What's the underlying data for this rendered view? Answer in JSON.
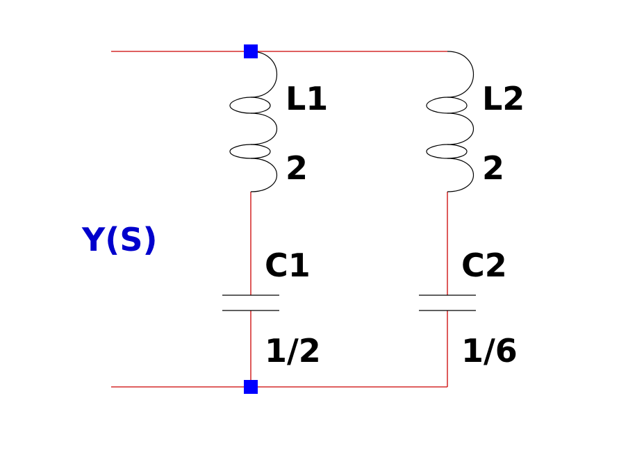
{
  "diagram": {
    "port_label": "Y(S)",
    "components": [
      {
        "designator": "L1",
        "value": "2"
      },
      {
        "designator": "C1",
        "value": "1/2"
      },
      {
        "designator": "L2",
        "value": "2"
      },
      {
        "designator": "C2",
        "value": "1/6"
      }
    ]
  },
  "colors": {
    "wire": "#cc0000",
    "junction": "#0000ff",
    "port_label": "#0000cc",
    "component": "#000000"
  }
}
